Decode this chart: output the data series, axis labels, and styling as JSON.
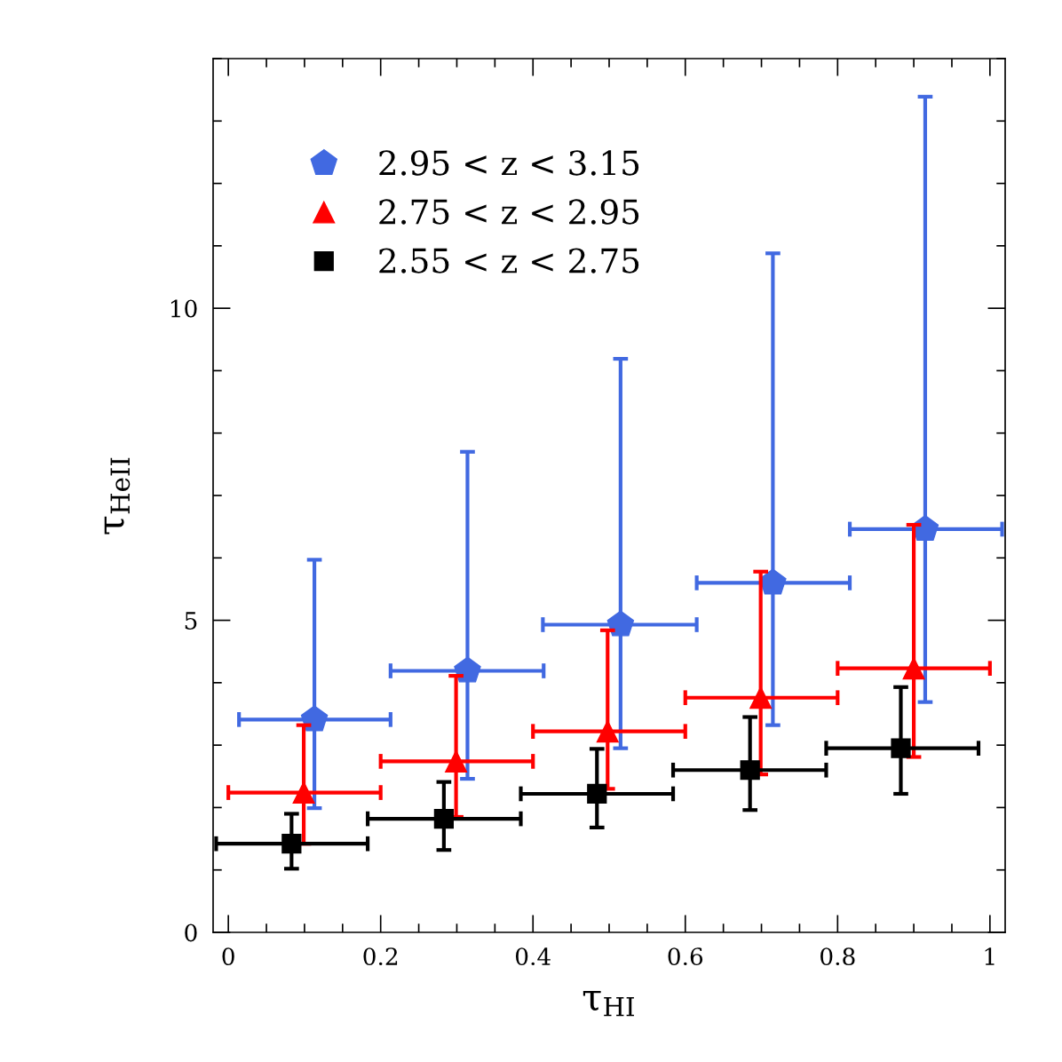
{
  "chart_data": {
    "type": "scatter",
    "xlabel": "τ$_{HI}$",
    "ylabel": "τ$_{HeII}$",
    "xlim": [
      -0.02,
      1.02
    ],
    "ylim": [
      0,
      14
    ],
    "xticks": [
      0,
      0.2,
      0.4,
      0.6,
      0.8,
      1
    ],
    "yticks": [
      0,
      5,
      10
    ],
    "grid": false,
    "legend": "top left",
    "series": [
      {
        "name": "2.95 < z < 3.15",
        "color": "#4169e1",
        "x": [
          0.113,
          0.314,
          0.515,
          0.715,
          0.915
        ],
        "values": [
          3.41,
          4.19,
          4.93,
          5.6,
          6.46
        ],
        "errors": [
          [
            1.99,
            5.97
          ],
          [
            2.46,
            7.7
          ],
          [
            2.95,
            9.19
          ],
          [
            3.32,
            10.88
          ],
          [
            3.69,
            13.39
          ]
        ],
        "xerrors": [
          [
            0.014,
            0.213
          ],
          [
            0.213,
            0.414
          ],
          [
            0.413,
            0.615
          ],
          [
            0.615,
            0.816
          ],
          [
            0.816,
            1.016
          ]
        ]
      },
      {
        "name": "2.75 < z < 2.95",
        "color": "#ff0000",
        "marker": "triangle",
        "x": [
          0.099,
          0.299,
          0.498,
          0.699,
          0.9
        ],
        "values": [
          2.24,
          2.74,
          3.22,
          3.76,
          4.23
        ],
        "errors": [
          [
            1.42,
            3.32
          ],
          [
            1.85,
            4.11
          ],
          [
            2.3,
            4.84
          ],
          [
            2.53,
            5.78
          ],
          [
            2.81,
            6.53
          ]
        ],
        "xerrors": [
          [
            0,
            0.2
          ],
          [
            0.2,
            0.4
          ],
          [
            0.4,
            0.6
          ],
          [
            0.6,
            0.8
          ],
          [
            0.8,
            1.0
          ]
        ]
      },
      {
        "name": "2.55 < z < 2.75",
        "color": "#000000",
        "marker": "square",
        "x": [
          0.083,
          0.283,
          0.484,
          0.685,
          0.883
        ],
        "values": [
          1.42,
          1.82,
          2.22,
          2.6,
          2.95
        ],
        "errors": [
          [
            1.02,
            1.9
          ],
          [
            1.32,
            2.41
          ],
          [
            1.68,
            2.94
          ],
          [
            1.96,
            3.45
          ],
          [
            2.22,
            3.93
          ]
        ],
        "xerrors": [
          [
            -0.016,
            0.183
          ],
          [
            0.183,
            0.384
          ],
          [
            0.384,
            0.584
          ],
          [
            0.584,
            0.785
          ],
          [
            0.785,
            0.985
          ]
        ]
      }
    ]
  }
}
